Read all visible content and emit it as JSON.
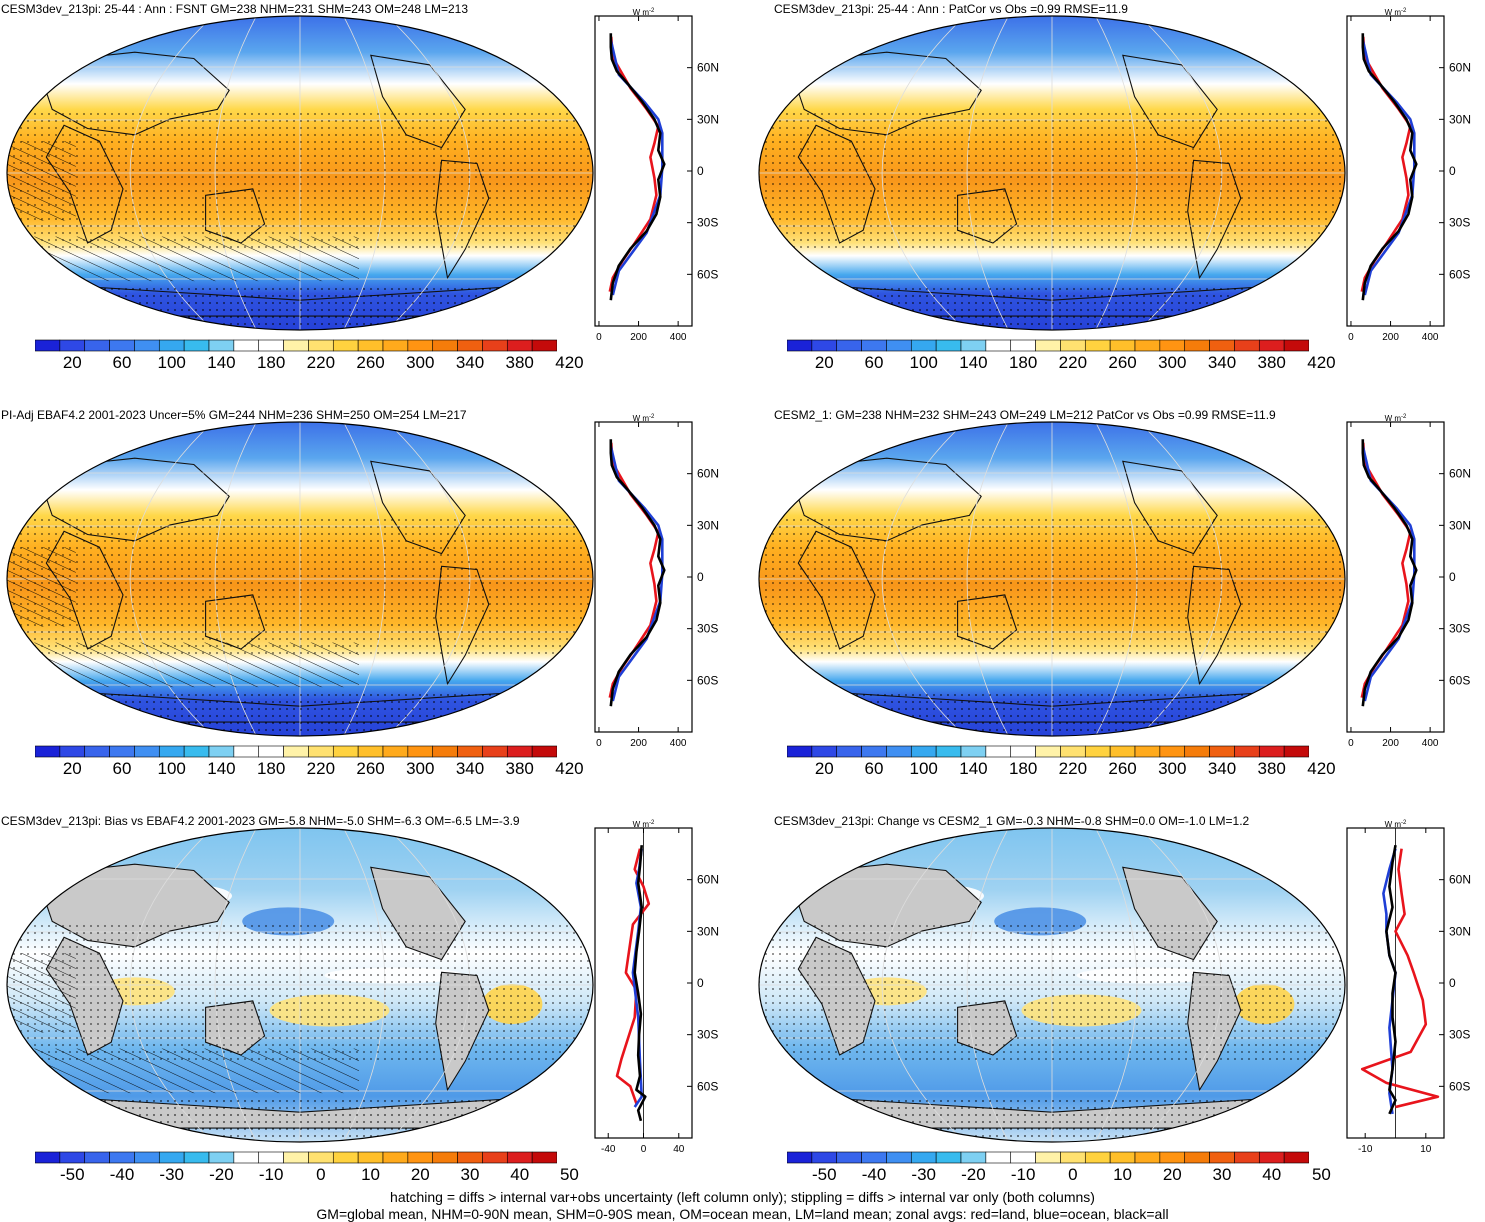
{
  "colors": {
    "land": "#c9c9c9",
    "coast": "#111111",
    "grid": "#dddddd",
    "zonal_land": "#e8141c",
    "zonal_ocean": "#1f3fd6",
    "zonal_all": "#000000"
  },
  "colorbar_abs": [
    "#1a22d8",
    "#2e48e6",
    "#3864ec",
    "#3d78f0",
    "#3f8ff2",
    "#35a8f0",
    "#38bbee",
    "#7ed0f2",
    "#ffffff",
    "#ffffff",
    "#fff2a8",
    "#ffe170",
    "#ffd23f",
    "#ffbf2a",
    "#ffaa1c",
    "#ff9412",
    "#f57c0a",
    "#f06010",
    "#e8401a",
    "#dc1e1e",
    "#c40a0a"
  ],
  "colorbar_diff": [
    "#1a22d8",
    "#2e48e6",
    "#3864ec",
    "#3d78f0",
    "#3f8ff2",
    "#35a8f0",
    "#38bbee",
    "#7ed0f2",
    "#ffffff",
    "#ffffff",
    "#fff2a8",
    "#ffe170",
    "#ffd23f",
    "#ffbf2a",
    "#ffaa1c",
    "#ff9412",
    "#f57c0a",
    "#f06010",
    "#e8401a",
    "#dc1e1e",
    "#c40a0a"
  ],
  "abs_labels": [
    "20",
    "60",
    "100",
    "140",
    "180",
    "220",
    "260",
    "300",
    "340",
    "380",
    "420"
  ],
  "diff_labels": [
    "-50",
    "-40",
    "-30",
    "-20",
    "-10",
    "0",
    "10",
    "20",
    "30",
    "40",
    "50"
  ],
  "lat_labels": [
    "60N",
    "30N",
    "0",
    "30S",
    "60S"
  ],
  "units": "W m",
  "units_sup": "-2",
  "zonal_ticks_abs": [
    "0",
    "200",
    "400"
  ],
  "zonal_ticks_diff": [
    "-40",
    "0",
    "40"
  ],
  "zonal_ticks_diff_right": [
    "-10",
    "10"
  ],
  "panels": [
    {
      "title": "CESM3dev_213pi: 25-44 : Ann : FSNT GM=238 NHM=231 SHM=243 OM=248 LM=213",
      "kind": "abs",
      "hatch": true
    },
    {
      "title": "CESM3dev_213pi: 25-44 : Ann : PatCor vs Obs =0.99 RMSE=11.9",
      "kind": "abs",
      "hatch": false
    },
    {
      "title": "PI-Adj EBAF4.2 2001-2023 Uncer=5% GM=244 NHM=236 SHM=250 OM=254 LM=217",
      "kind": "abs",
      "hatch": true
    },
    {
      "title": "CESM2_1: GM=238 NHM=232 SHM=243 OM=249 LM=212 PatCor vs Obs =0.99 RMSE=11.9",
      "kind": "abs",
      "hatch": false
    },
    {
      "title": "CESM3dev_213pi: Bias vs EBAF4.2 2001-2023 GM=-5.8 NHM=-5.0 SHM=-6.3 OM=-6.5 LM=-3.9",
      "kind": "diff",
      "hatch": true
    },
    {
      "title": "CESM3dev_213pi: Change vs CESM2_1 GM=-0.3 NHM=-0.8 SHM=0.0 OM=-1.0 LM=1.2",
      "kind": "diff2",
      "hatch": false
    }
  ],
  "footer": {
    "line1": "hatching = diffs > internal var+obs uncertainty (left column only); stippling = diffs > internal var only (both columns)",
    "line2": "GM=global mean, NHM=0-90N mean, SHM=0-90S mean, OM=ocean mean, LM=land mean; zonal avgs: red=land, blue=ocean, black=all"
  }
}
